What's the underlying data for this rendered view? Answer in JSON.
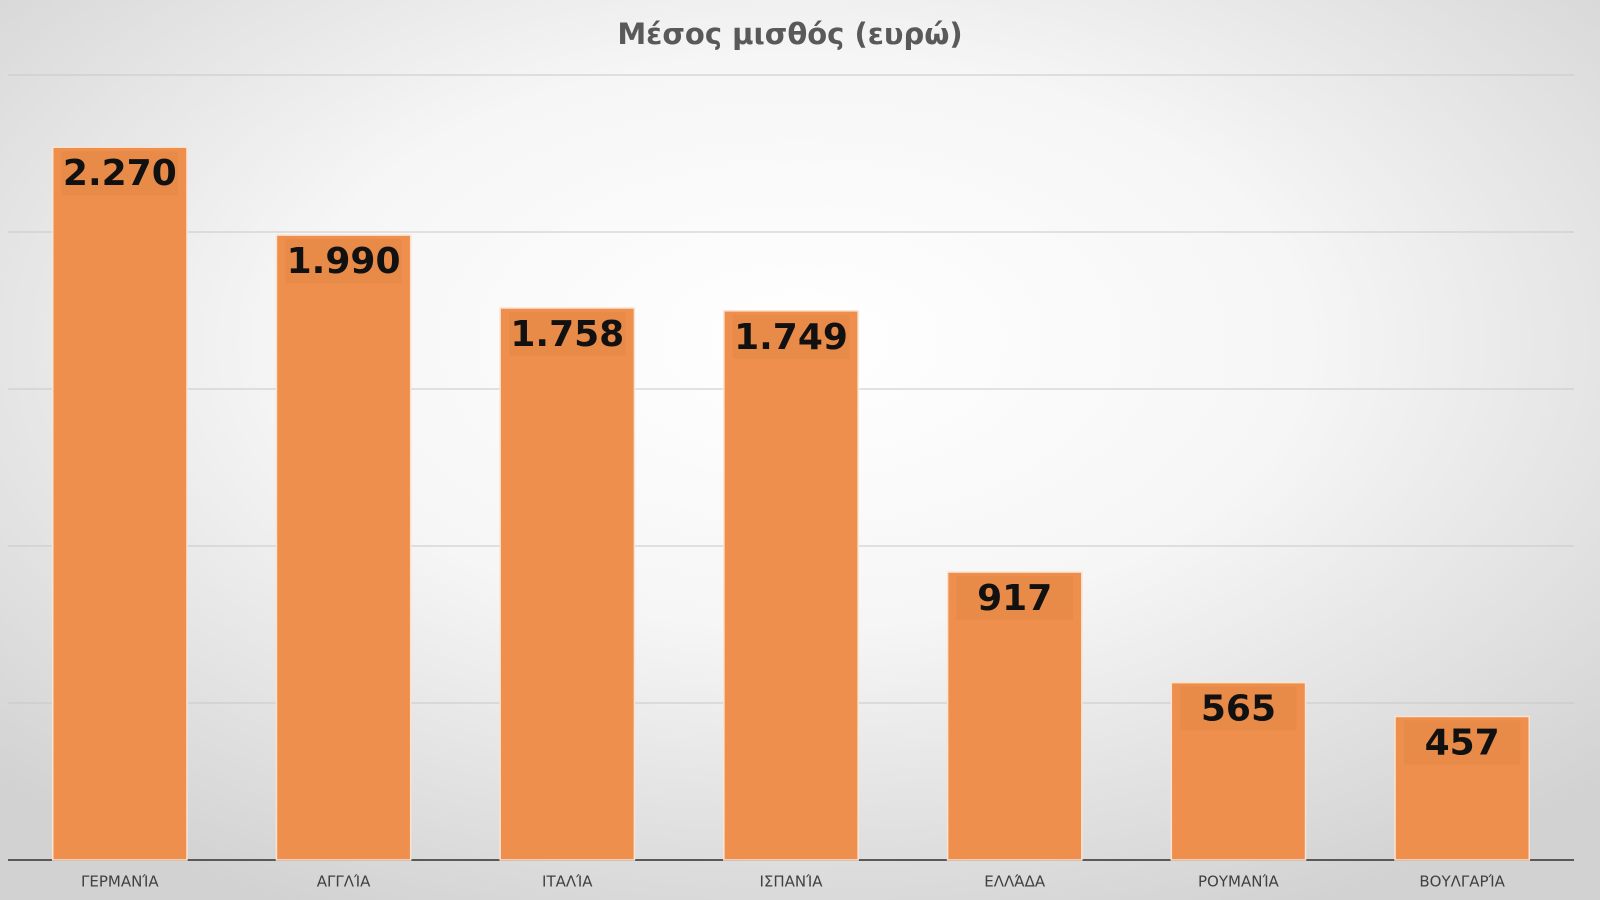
{
  "chart_data": {
    "type": "bar",
    "title": "Μέσος μισθός (ευρώ)",
    "categories": [
      "ΓΕΡΜΑΝΊΑ",
      "ΑΓΓΛΊΑ",
      "ΙΤΑΛΊΑ",
      "ΙΣΠΑΝΊΑ",
      "ΕΛΛΆΔΑ",
      "ΡΟΥΜΑΝΊΑ",
      "ΒΟΥΛΓΑΡΊΑ"
    ],
    "values": [
      2270,
      1990,
      1758,
      1749,
      917,
      565,
      457
    ],
    "value_labels": [
      "2.270",
      "1.990",
      "1.758",
      "1.749",
      "917",
      "565",
      "457"
    ],
    "color": "#ef8f4e",
    "ylim": [
      0,
      2500
    ],
    "yticks": [
      0,
      500,
      1000,
      1500,
      2000,
      2500
    ],
    "grid": true
  }
}
